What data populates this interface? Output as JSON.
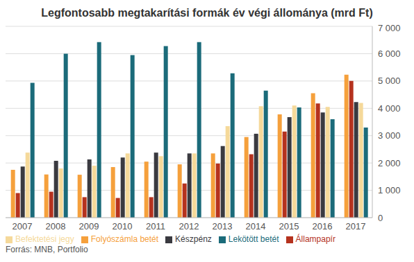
{
  "chart_data": {
    "type": "bar",
    "title": "Legfontosabb megtakarítási formák év végi állománya (mrd Ft)",
    "source": "Forrás: MNB, Portfolio",
    "categories": [
      "2007",
      "2008",
      "2009",
      "2010",
      "2011",
      "2012",
      "2013",
      "2014",
      "2015",
      "2016",
      "2017"
    ],
    "series": [
      {
        "name": "Folyószámla betét",
        "color": "#f5a03c",
        "values": [
          1750,
          1580,
          1570,
          1850,
          2050,
          1950,
          2350,
          2950,
          3780,
          4550,
          5230
        ]
      },
      {
        "name": "Állampapír",
        "color": "#b5321e",
        "values": [
          900,
          950,
          750,
          720,
          750,
          1250,
          1980,
          2320,
          3150,
          4180,
          5000
        ]
      },
      {
        "name": "Készpénz",
        "color": "#3a3a40",
        "values": [
          1870,
          2080,
          2130,
          2200,
          2380,
          2350,
          2620,
          3070,
          3680,
          3850,
          4230
        ]
      },
      {
        "name": "Befektetési jegy",
        "color": "#f5d99a",
        "values": [
          2380,
          1800,
          1900,
          2350,
          2250,
          2350,
          3350,
          4080,
          4100,
          4050,
          4200
        ]
      },
      {
        "name": "Lekötött betét",
        "color": "#1b6b7a",
        "values": [
          4930,
          6000,
          6420,
          5950,
          6280,
          6420,
          5280,
          4650,
          4030,
          3600,
          3300
        ]
      }
    ],
    "ylim": [
      0,
      7000
    ],
    "yticks": [
      0,
      {
        "value": 1000,
        "label": "1 000"
      },
      {
        "value": 2000,
        "label": "2 000"
      },
      {
        "value": 3000,
        "label": "3 000"
      },
      {
        "value": 4000,
        "label": "4 000"
      },
      {
        "value": 5000,
        "label": "5 000"
      },
      {
        "value": 6000,
        "label": "6 000"
      },
      {
        "value": 7000,
        "label": "7 000"
      }
    ],
    "grid": true,
    "legend": "bottom"
  }
}
